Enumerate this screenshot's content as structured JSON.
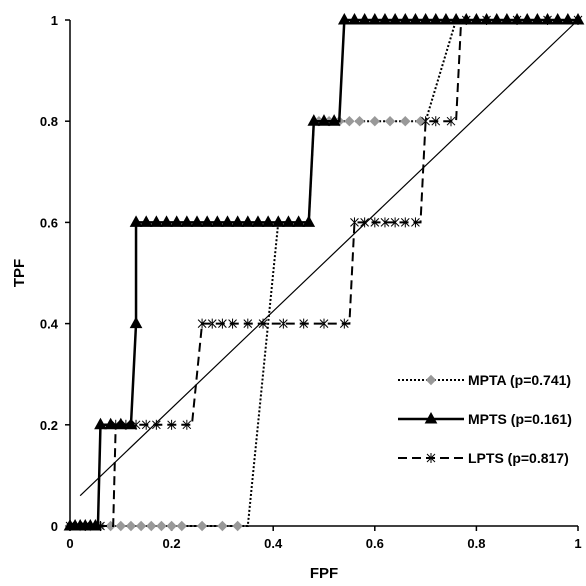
{
  "chart_data": {
    "type": "line",
    "title": "",
    "xlabel": "FPF",
    "ylabel": "TPF",
    "xlim": [
      0,
      1
    ],
    "ylim": [
      0,
      1
    ],
    "xticks": [
      "0",
      "0.2",
      "0.4",
      "0.6",
      "0.8",
      "1"
    ],
    "yticks": [
      "0",
      "0.2",
      "0.4",
      "0.6",
      "0.8",
      "1"
    ],
    "grid": false,
    "legend_position": "bottom-right",
    "series": [
      {
        "name": "MPTA (p=0.741)",
        "style": "dotted",
        "marker": "diamond",
        "color": "#999999",
        "points": [
          [
            0,
            0
          ],
          [
            0.35,
            0
          ],
          [
            0.41,
            0.6
          ],
          [
            0.47,
            0.6
          ],
          [
            0.48,
            0.8
          ],
          [
            0.7,
            0.8
          ],
          [
            0.76,
            1
          ],
          [
            1,
            1
          ]
        ],
        "markers": [
          [
            0.0,
            0
          ],
          [
            0.02,
            0
          ],
          [
            0.04,
            0
          ],
          [
            0.06,
            0
          ],
          [
            0.08,
            0
          ],
          [
            0.1,
            0
          ],
          [
            0.12,
            0
          ],
          [
            0.14,
            0
          ],
          [
            0.16,
            0
          ],
          [
            0.18,
            0
          ],
          [
            0.2,
            0
          ],
          [
            0.22,
            0
          ],
          [
            0.26,
            0
          ],
          [
            0.3,
            0
          ],
          [
            0.33,
            0
          ],
          [
            0.49,
            0.8
          ],
          [
            0.51,
            0.8
          ],
          [
            0.53,
            0.8
          ],
          [
            0.55,
            0.8
          ],
          [
            0.57,
            0.8
          ],
          [
            0.6,
            0.8
          ],
          [
            0.63,
            0.8
          ],
          [
            0.66,
            0.8
          ],
          [
            0.69,
            0.8
          ]
        ]
      },
      {
        "name": "MPTS (p=0.161)",
        "style": "solid",
        "marker": "triangle",
        "color": "#000000",
        "points": [
          [
            0,
            0
          ],
          [
            0.055,
            0
          ],
          [
            0.06,
            0.2
          ],
          [
            0.12,
            0.2
          ],
          [
            0.13,
            0.4
          ],
          [
            0.13,
            0.6
          ],
          [
            0.47,
            0.6
          ],
          [
            0.48,
            0.8
          ],
          [
            0.53,
            0.8
          ],
          [
            0.54,
            1
          ],
          [
            1,
            1
          ]
        ],
        "markers": [
          [
            0,
            0
          ],
          [
            0.01,
            0
          ],
          [
            0.02,
            0
          ],
          [
            0.03,
            0
          ],
          [
            0.04,
            0
          ],
          [
            0.05,
            0
          ],
          [
            0.06,
            0.2
          ],
          [
            0.08,
            0.2
          ],
          [
            0.1,
            0.2
          ],
          [
            0.12,
            0.2
          ],
          [
            0.13,
            0.4
          ],
          [
            0.13,
            0.6
          ],
          [
            0.15,
            0.6
          ],
          [
            0.17,
            0.6
          ],
          [
            0.19,
            0.6
          ],
          [
            0.21,
            0.6
          ],
          [
            0.23,
            0.6
          ],
          [
            0.25,
            0.6
          ],
          [
            0.27,
            0.6
          ],
          [
            0.29,
            0.6
          ],
          [
            0.31,
            0.6
          ],
          [
            0.33,
            0.6
          ],
          [
            0.35,
            0.6
          ],
          [
            0.37,
            0.6
          ],
          [
            0.39,
            0.6
          ],
          [
            0.41,
            0.6
          ],
          [
            0.43,
            0.6
          ],
          [
            0.45,
            0.6
          ],
          [
            0.47,
            0.6
          ],
          [
            0.48,
            0.8
          ],
          [
            0.5,
            0.8
          ],
          [
            0.52,
            0.8
          ],
          [
            0.54,
            1
          ],
          [
            0.56,
            1
          ],
          [
            0.58,
            1
          ],
          [
            0.6,
            1
          ],
          [
            0.62,
            1
          ],
          [
            0.64,
            1
          ],
          [
            0.66,
            1
          ],
          [
            0.68,
            1
          ],
          [
            0.7,
            1
          ],
          [
            0.72,
            1
          ],
          [
            0.74,
            1
          ],
          [
            0.76,
            1
          ],
          [
            0.78,
            1
          ],
          [
            0.8,
            1
          ],
          [
            0.82,
            1
          ],
          [
            0.84,
            1
          ],
          [
            0.86,
            1
          ],
          [
            0.88,
            1
          ],
          [
            0.9,
            1
          ],
          [
            0.92,
            1
          ],
          [
            0.94,
            1
          ],
          [
            0.96,
            1
          ],
          [
            0.98,
            1
          ],
          [
            1,
            1
          ]
        ]
      },
      {
        "name": "LPTS (p=0.817)",
        "style": "dashed",
        "marker": "asterisk",
        "color": "#000000",
        "points": [
          [
            0,
            0
          ],
          [
            0.085,
            0
          ],
          [
            0.09,
            0.2
          ],
          [
            0.24,
            0.2
          ],
          [
            0.26,
            0.4
          ],
          [
            0.55,
            0.4
          ],
          [
            0.56,
            0.6
          ],
          [
            0.69,
            0.6
          ],
          [
            0.7,
            0.8
          ],
          [
            0.76,
            0.8
          ],
          [
            0.77,
            1
          ],
          [
            1,
            1
          ]
        ],
        "markers": [
          [
            0.0,
            0
          ],
          [
            0.03,
            0
          ],
          [
            0.06,
            0
          ],
          [
            0.09,
            0.2
          ],
          [
            0.11,
            0.2
          ],
          [
            0.13,
            0.2
          ],
          [
            0.15,
            0.2
          ],
          [
            0.17,
            0.2
          ],
          [
            0.2,
            0.2
          ],
          [
            0.23,
            0.2
          ],
          [
            0.26,
            0.4
          ],
          [
            0.28,
            0.4
          ],
          [
            0.3,
            0.4
          ],
          [
            0.32,
            0.4
          ],
          [
            0.35,
            0.4
          ],
          [
            0.38,
            0.4
          ],
          [
            0.42,
            0.4
          ],
          [
            0.46,
            0.4
          ],
          [
            0.5,
            0.4
          ],
          [
            0.54,
            0.4
          ],
          [
            0.56,
            0.6
          ],
          [
            0.58,
            0.6
          ],
          [
            0.6,
            0.6
          ],
          [
            0.62,
            0.6
          ],
          [
            0.64,
            0.6
          ],
          [
            0.66,
            0.6
          ],
          [
            0.68,
            0.6
          ],
          [
            0.7,
            0.8
          ],
          [
            0.72,
            0.8
          ],
          [
            0.75,
            0.8
          ],
          [
            0.78,
            1
          ],
          [
            0.82,
            1
          ],
          [
            0.88,
            1
          ],
          [
            0.94,
            1
          ],
          [
            1,
            1
          ]
        ]
      },
      {
        "name": "",
        "style": "solid-thin",
        "marker": "none",
        "color": "#000000",
        "points": [
          [
            0.02,
            0.06
          ],
          [
            1,
            1
          ]
        ],
        "markers": []
      }
    ]
  }
}
